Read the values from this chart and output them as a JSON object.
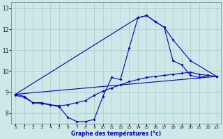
{
  "xlabel": "Graphe des températures (°c)",
  "bg_color": "#cce8e8",
  "grid_color": "#aacccc",
  "line_color": "#0000cc",
  "xlim": [
    -0.5,
    23.5
  ],
  "ylim": [
    7.5,
    13.3
  ],
  "xticks": [
    0,
    1,
    2,
    3,
    4,
    5,
    6,
    7,
    8,
    9,
    10,
    11,
    12,
    13,
    14,
    15,
    16,
    17,
    18,
    19,
    20,
    21,
    22,
    23
  ],
  "yticks": [
    8,
    9,
    10,
    11,
    12,
    13
  ],
  "line1_x": [
    0,
    1,
    2,
    3,
    4,
    5,
    6,
    7,
    8,
    9,
    10,
    11,
    12,
    13,
    14,
    15,
    16,
    17,
    18,
    19,
    20,
    21,
    22
  ],
  "line1_y": [
    8.9,
    8.8,
    8.5,
    8.5,
    8.4,
    8.3,
    7.8,
    7.6,
    7.6,
    7.7,
    8.8,
    9.7,
    9.6,
    11.1,
    12.55,
    12.65,
    12.35,
    12.1,
    10.5,
    10.3,
    9.8,
    9.7,
    9.8
  ],
  "line2_x": [
    0,
    23
  ],
  "line2_y": [
    8.9,
    9.75
  ],
  "line3_x": [
    0,
    1,
    2,
    3,
    4,
    5,
    6,
    7,
    8,
    9,
    10,
    11,
    12,
    13,
    14,
    15,
    16,
    17,
    18,
    19,
    20,
    21,
    22,
    23
  ],
  "line3_y": [
    8.85,
    8.75,
    8.5,
    8.45,
    8.4,
    8.35,
    8.4,
    8.5,
    8.6,
    8.85,
    9.05,
    9.2,
    9.35,
    9.5,
    9.6,
    9.7,
    9.75,
    9.8,
    9.85,
    9.9,
    9.95,
    9.85,
    9.8,
    9.75
  ],
  "line4_x": [
    0,
    14,
    15,
    16,
    17,
    18,
    20,
    23
  ],
  "line4_y": [
    8.9,
    12.55,
    12.65,
    12.35,
    12.1,
    11.5,
    10.5,
    9.75
  ]
}
